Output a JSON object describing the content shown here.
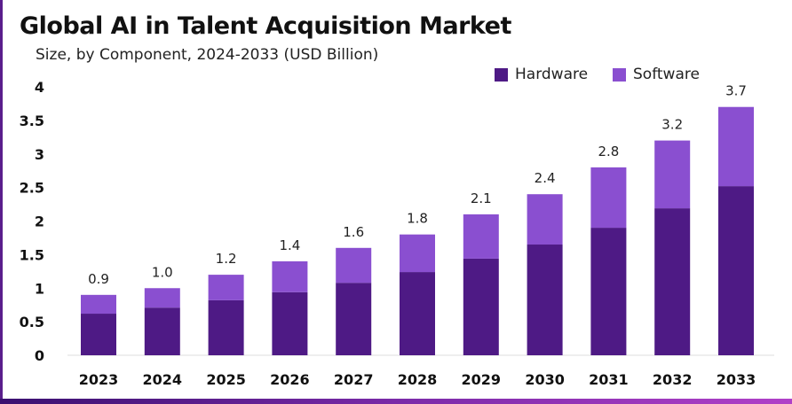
{
  "chart_data": {
    "type": "bar",
    "stacked": true,
    "title": "Global AI in Talent Acquisition Market",
    "subtitle": "Size, by Component, 2024-2033 (USD Billion)",
    "categories": [
      "2023",
      "2024",
      "2025",
      "2026",
      "2027",
      "2028",
      "2029",
      "2030",
      "2031",
      "2032",
      "2033"
    ],
    "series": [
      {
        "name": "Hardware",
        "color": "#4e1a85",
        "values": [
          0.62,
          0.71,
          0.82,
          0.94,
          1.08,
          1.24,
          1.44,
          1.65,
          1.9,
          2.19,
          2.52
        ]
      },
      {
        "name": "Software",
        "color": "#8a4fd0",
        "values": [
          0.28,
          0.29,
          0.38,
          0.46,
          0.52,
          0.56,
          0.66,
          0.75,
          0.9,
          1.01,
          1.18
        ]
      }
    ],
    "totals_labels": [
      "0.9",
      "1.0",
      "1.2",
      "1.4",
      "1.6",
      "1.8",
      "2.1",
      "2.4",
      "2.8",
      "3.2",
      "3.7"
    ],
    "y_ticks": [
      "0",
      "0.5",
      "1",
      "1.5",
      "2",
      "2.5",
      "3",
      "3.5",
      "4"
    ],
    "ylim": [
      0,
      4
    ],
    "grid": false,
    "legend": "top-right"
  }
}
